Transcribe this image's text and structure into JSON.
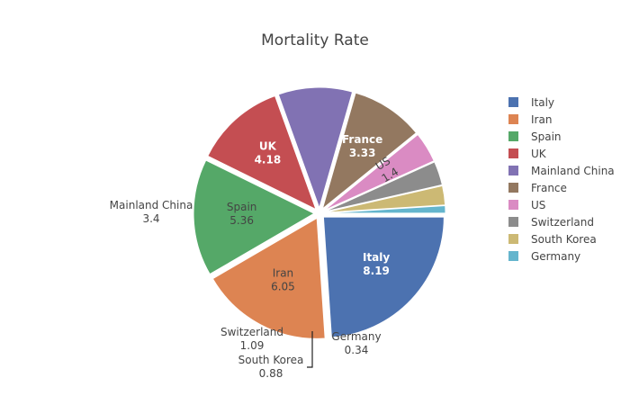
{
  "chart_data": {
    "type": "pie",
    "title": "Mortality Rate",
    "legend_position": "right",
    "slices": [
      {
        "label": "Italy",
        "value": 8.19,
        "color": "#4c72b0"
      },
      {
        "label": "Iran",
        "value": 6.05,
        "color": "#dd8452"
      },
      {
        "label": "Spain",
        "value": 5.36,
        "color": "#55a868"
      },
      {
        "label": "UK",
        "value": 4.18,
        "color": "#c44e52"
      },
      {
        "label": "Mainland China",
        "value": 3.4,
        "color": "#8172b3"
      },
      {
        "label": "France",
        "value": 3.33,
        "color": "#937860"
      },
      {
        "label": "US",
        "value": 1.4,
        "color": "#da8bc3"
      },
      {
        "label": "Switzerland",
        "value": 1.09,
        "color": "#8c8c8c"
      },
      {
        "label": "South Korea",
        "value": 0.88,
        "color": "#ccb974"
      },
      {
        "label": "Germany",
        "value": 0.34,
        "color": "#64b5cd"
      }
    ]
  }
}
